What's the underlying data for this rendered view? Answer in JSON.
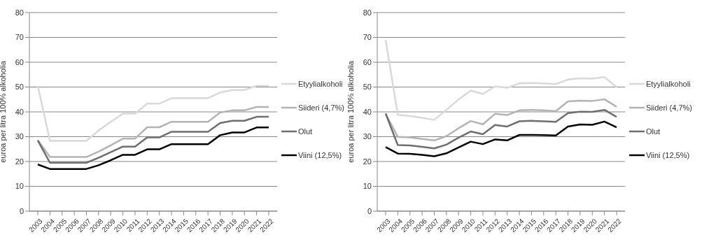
{
  "chart_data": [
    {
      "type": "line",
      "ylabel": "euroa per litra 100% alkoholia",
      "categories": [
        "2003",
        "2004",
        "2005",
        "2006",
        "2007",
        "2008",
        "2009",
        "2010",
        "2011",
        "2012",
        "2013",
        "2014",
        "2015",
        "2016",
        "2017",
        "2018",
        "2019",
        "2020",
        "2021",
        "2022"
      ],
      "ylim": [
        0,
        80
      ],
      "yticks": [
        0,
        10,
        20,
        30,
        40,
        50,
        60,
        70,
        80
      ],
      "grid": "y",
      "legend": "right",
      "marker": "none",
      "series": [
        {
          "name": "Etyylialkoholi",
          "color": "#d9d9d9",
          "values": [
            50.5,
            28.3,
            28.3,
            28.3,
            28.3,
            32.5,
            36,
            39.3,
            39.3,
            43.3,
            43.3,
            45.5,
            45.5,
            45.5,
            45.5,
            47.8,
            48.8,
            48.8,
            50.5,
            50.5
          ]
        },
        {
          "name": "Siideri (4,7%)",
          "color": "#b3b3b3",
          "values": [
            28.5,
            21.8,
            21.8,
            21.8,
            21.8,
            24,
            26.5,
            29.2,
            29.2,
            33.8,
            33.8,
            36,
            36,
            36,
            36,
            39.7,
            40.6,
            40.6,
            42,
            42
          ]
        },
        {
          "name": "Olut",
          "color": "#6e6e6e",
          "values": [
            28.5,
            19.5,
            19.5,
            19.5,
            19.5,
            21.5,
            23.8,
            26,
            26,
            29.7,
            29.7,
            32,
            32,
            32,
            32,
            35.5,
            36.4,
            36.4,
            38,
            38
          ]
        },
        {
          "name": "Viini (12,5%)",
          "color": "#000000",
          "values": [
            18.8,
            17,
            17,
            17,
            17,
            18.5,
            20.5,
            22.7,
            22.7,
            24.9,
            24.9,
            27,
            27,
            27,
            27,
            30.6,
            31.7,
            31.7,
            33.7,
            33.7
          ]
        }
      ]
    },
    {
      "type": "line",
      "ylabel": "euroa per litra 100% alkoholia",
      "categories": [
        "2003",
        "2004",
        "2005",
        "2006",
        "2007",
        "2008",
        "2009",
        "2010",
        "2011",
        "2012",
        "2013",
        "2014",
        "2015",
        "2016",
        "2017",
        "2018",
        "2019",
        "2020",
        "2021",
        "2022"
      ],
      "ylim": [
        0,
        80
      ],
      "yticks": [
        0,
        10,
        20,
        30,
        40,
        50,
        60,
        70,
        80
      ],
      "grid": "y",
      "legend": "right",
      "marker": "none",
      "series": [
        {
          "name": "Etyylialkoholi",
          "color": "#d9d9d9",
          "values": [
            69,
            38.8,
            38.3,
            37.6,
            36.8,
            40.8,
            45,
            48.6,
            47.2,
            50.3,
            49.7,
            51.5,
            51.6,
            51.5,
            51.2,
            53,
            53.5,
            53.4,
            54,
            50
          ]
        },
        {
          "name": "Siideri (4,7%)",
          "color": "#b3b3b3",
          "values": [
            39.3,
            29.9,
            29.7,
            29.1,
            28.5,
            30.2,
            33.4,
            36.3,
            35,
            39.2,
            38.7,
            40.6,
            40.8,
            40.6,
            40.3,
            44.2,
            44.5,
            44.4,
            45.1,
            42
          ]
        },
        {
          "name": "Olut",
          "color": "#6e6e6e",
          "values": [
            39.3,
            26.6,
            26.5,
            25.9,
            25.3,
            26.8,
            29.6,
            32.1,
            31,
            34.7,
            34.1,
            36.2,
            36.4,
            36.2,
            36,
            39.5,
            40.1,
            40,
            40.8,
            38
          ]
        },
        {
          "name": "Viini (12,5%)",
          "color": "#000000",
          "values": [
            25.8,
            23.2,
            23.1,
            22.7,
            22.1,
            23.3,
            25.7,
            28,
            27,
            28.9,
            28.5,
            30.7,
            30.7,
            30.6,
            30.5,
            34.1,
            34.9,
            34.8,
            36.1,
            33.8
          ]
        }
      ]
    }
  ]
}
